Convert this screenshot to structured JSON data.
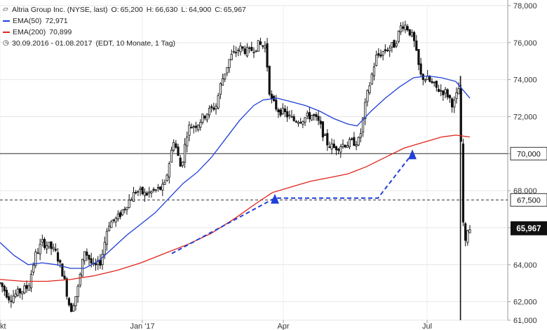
{
  "header": {
    "title": "Altria Group Inc. (NYSE, last)",
    "ohlc": [
      {
        "label": "O:",
        "value": "65,200"
      },
      {
        "label": "H:",
        "value": "66,630"
      },
      {
        "label": "L:",
        "value": "64,900"
      },
      {
        "label": "C:",
        "value": "65,967"
      }
    ],
    "ema50": {
      "label": "EMA(50)",
      "value": "72,971",
      "color": "#1f3fd8"
    },
    "ema200": {
      "label": "EMA(200)",
      "value": "70,899",
      "color": "#e0241b"
    },
    "range": "30.09.2016 - 01.08.2017",
    "range_note": "(EDT, 10 Monate, 1 Tag)",
    "icons": [
      "candlestick-icon",
      "clock-icon"
    ]
  },
  "chart_data": {
    "type": "candlestick",
    "ylim": [
      61,
      78
    ],
    "y_ticks": [
      "78,000",
      "76,000",
      "74,000",
      "72,000",
      "70,000",
      "68,000",
      "66,000",
      "64,000",
      "62,000",
      "61,000"
    ],
    "x_ticks": [
      {
        "label": "Okt",
        "t": 0.0
      },
      {
        "label": "Jan '17",
        "t": 0.303
      },
      {
        "label": "Apr",
        "t": 0.603
      },
      {
        "label": "Jul",
        "t": 0.909
      }
    ],
    "horizontal_lines": [
      {
        "value": 70.0,
        "label": "70,000",
        "style": "solid"
      },
      {
        "value": 67.5,
        "label": "67,500",
        "style": "dashed"
      }
    ],
    "last_price": {
      "value": 65.967,
      "label": "65,967"
    },
    "close_path": [
      [
        0,
        63.0
      ],
      [
        0.02,
        62.2
      ],
      [
        0.04,
        62.5
      ],
      [
        0.06,
        62.8
      ],
      [
        0.075,
        64.5
      ],
      [
        0.09,
        65.2
      ],
      [
        0.105,
        65.0
      ],
      [
        0.12,
        64.6
      ],
      [
        0.135,
        63.4
      ],
      [
        0.15,
        61.5
      ],
      [
        0.165,
        62.6
      ],
      [
        0.18,
        64.8
      ],
      [
        0.2,
        63.8
      ],
      [
        0.215,
        64.2
      ],
      [
        0.23,
        66.2
      ],
      [
        0.25,
        66.5
      ],
      [
        0.27,
        67.3
      ],
      [
        0.29,
        68.0
      ],
      [
        0.31,
        67.8
      ],
      [
        0.33,
        68.0
      ],
      [
        0.35,
        68.2
      ],
      [
        0.37,
        70.8
      ],
      [
        0.385,
        69.2
      ],
      [
        0.4,
        71.4
      ],
      [
        0.42,
        71.6
      ],
      [
        0.44,
        72.2
      ],
      [
        0.46,
        72.6
      ],
      [
        0.47,
        73.8
      ],
      [
        0.49,
        75.2
      ],
      [
        0.51,
        75.7
      ],
      [
        0.53,
        75.5
      ],
      [
        0.55,
        75.9
      ],
      [
        0.565,
        75.8
      ],
      [
        0.575,
        73.0
      ],
      [
        0.59,
        72.4
      ],
      [
        0.605,
        72.2
      ],
      [
        0.625,
        71.8
      ],
      [
        0.645,
        71.9
      ],
      [
        0.665,
        72.1
      ],
      [
        0.68,
        71.6
      ],
      [
        0.695,
        70.6
      ],
      [
        0.71,
        70.3
      ],
      [
        0.73,
        70.5
      ],
      [
        0.75,
        70.6
      ],
      [
        0.765,
        70.7
      ],
      [
        0.78,
        73.0
      ],
      [
        0.8,
        75.2
      ],
      [
        0.82,
        75.6
      ],
      [
        0.84,
        75.9
      ],
      [
        0.855,
        77.0
      ],
      [
        0.865,
        76.9
      ],
      [
        0.88,
        76.2
      ],
      [
        0.895,
        74.2
      ],
      [
        0.91,
        74.0
      ],
      [
        0.93,
        73.5
      ],
      [
        0.95,
        73.3
      ],
      [
        0.965,
        72.6
      ],
      [
        0.975,
        73.4
      ],
      [
        0.98,
        73.8
      ],
      [
        0.982,
        67.4
      ],
      [
        0.99,
        65.0
      ],
      [
        0.995,
        65.967
      ]
    ],
    "series": [
      {
        "name": "EMA(50)",
        "color": "#1f3fd8",
        "values": [
          [
            0,
            65.2
          ],
          [
            0.03,
            64.5
          ],
          [
            0.06,
            64.0
          ],
          [
            0.09,
            64.1
          ],
          [
            0.12,
            64.0
          ],
          [
            0.15,
            63.8
          ],
          [
            0.18,
            63.8
          ],
          [
            0.21,
            64.2
          ],
          [
            0.24,
            64.9
          ],
          [
            0.27,
            65.6
          ],
          [
            0.3,
            66.2
          ],
          [
            0.33,
            66.8
          ],
          [
            0.36,
            67.6
          ],
          [
            0.39,
            68.4
          ],
          [
            0.42,
            69.0
          ],
          [
            0.45,
            69.8
          ],
          [
            0.48,
            70.8
          ],
          [
            0.51,
            71.8
          ],
          [
            0.54,
            72.6
          ],
          [
            0.56,
            72.9
          ],
          [
            0.59,
            73.0
          ],
          [
            0.62,
            72.8
          ],
          [
            0.65,
            72.6
          ],
          [
            0.68,
            72.3
          ],
          [
            0.71,
            71.9
          ],
          [
            0.74,
            71.6
          ],
          [
            0.76,
            71.5
          ],
          [
            0.79,
            72.3
          ],
          [
            0.82,
            73.0
          ],
          [
            0.85,
            73.6
          ],
          [
            0.88,
            74.1
          ],
          [
            0.91,
            74.2
          ],
          [
            0.94,
            74.1
          ],
          [
            0.97,
            73.9
          ],
          [
            1.0,
            73.0
          ]
        ]
      },
      {
        "name": "EMA(200)",
        "color": "#e0241b",
        "values": [
          [
            0,
            63.2
          ],
          [
            0.05,
            63.1
          ],
          [
            0.1,
            63.1
          ],
          [
            0.15,
            63.2
          ],
          [
            0.2,
            63.4
          ],
          [
            0.25,
            63.7
          ],
          [
            0.3,
            64.1
          ],
          [
            0.35,
            64.6
          ],
          [
            0.4,
            65.1
          ],
          [
            0.45,
            65.7
          ],
          [
            0.5,
            66.5
          ],
          [
            0.55,
            67.4
          ],
          [
            0.58,
            67.9
          ],
          [
            0.62,
            68.2
          ],
          [
            0.66,
            68.5
          ],
          [
            0.7,
            68.7
          ],
          [
            0.74,
            68.9
          ],
          [
            0.78,
            69.3
          ],
          [
            0.82,
            69.8
          ],
          [
            0.86,
            70.3
          ],
          [
            0.9,
            70.6
          ],
          [
            0.94,
            70.9
          ],
          [
            0.97,
            71.0
          ],
          [
            1.0,
            70.9
          ]
        ]
      }
    ],
    "projection": {
      "color": "#1f3fd8",
      "points": [
        [
          66.1,
          64.6
        ],
        [
          68.2,
          67.6
        ],
        [
          70.3,
          67.6
        ],
        [
          71.0,
          70.0
        ]
      ]
    }
  }
}
